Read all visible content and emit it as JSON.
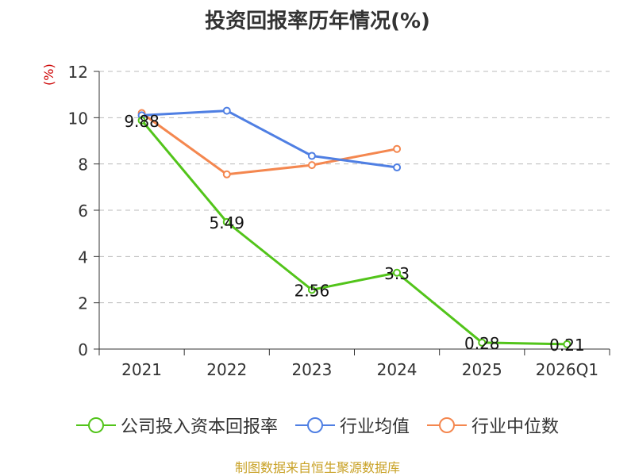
{
  "chart_data": {
    "type": "line",
    "title": "投资回报率历年情况(%)",
    "unit_label": "(%)",
    "categories": [
      "2021",
      "2022",
      "2023",
      "2024",
      "2025",
      "2026Q1"
    ],
    "ylim": [
      0,
      12
    ],
    "yticks": [
      0,
      2,
      4,
      6,
      8,
      10,
      12
    ],
    "grid": true,
    "legend_position": "bottom",
    "series": [
      {
        "name": "公司投入资本回报率",
        "color": "#52c41a",
        "show_labels": true,
        "values": [
          9.88,
          5.49,
          2.56,
          3.3,
          0.28,
          0.21
        ],
        "labels": [
          "9.88",
          "5.49",
          "2.56",
          "3.3",
          "0.28",
          "0.21"
        ]
      },
      {
        "name": "行业均值",
        "color": "#4f7fe3",
        "show_labels": false,
        "values": [
          10.1,
          10.3,
          8.35,
          7.85,
          null,
          null
        ]
      },
      {
        "name": "行业中位数",
        "color": "#f4874f",
        "show_labels": false,
        "values": [
          10.2,
          7.55,
          7.95,
          8.65,
          null,
          null
        ]
      }
    ]
  },
  "source": "制图数据来自恒生聚源数据库"
}
